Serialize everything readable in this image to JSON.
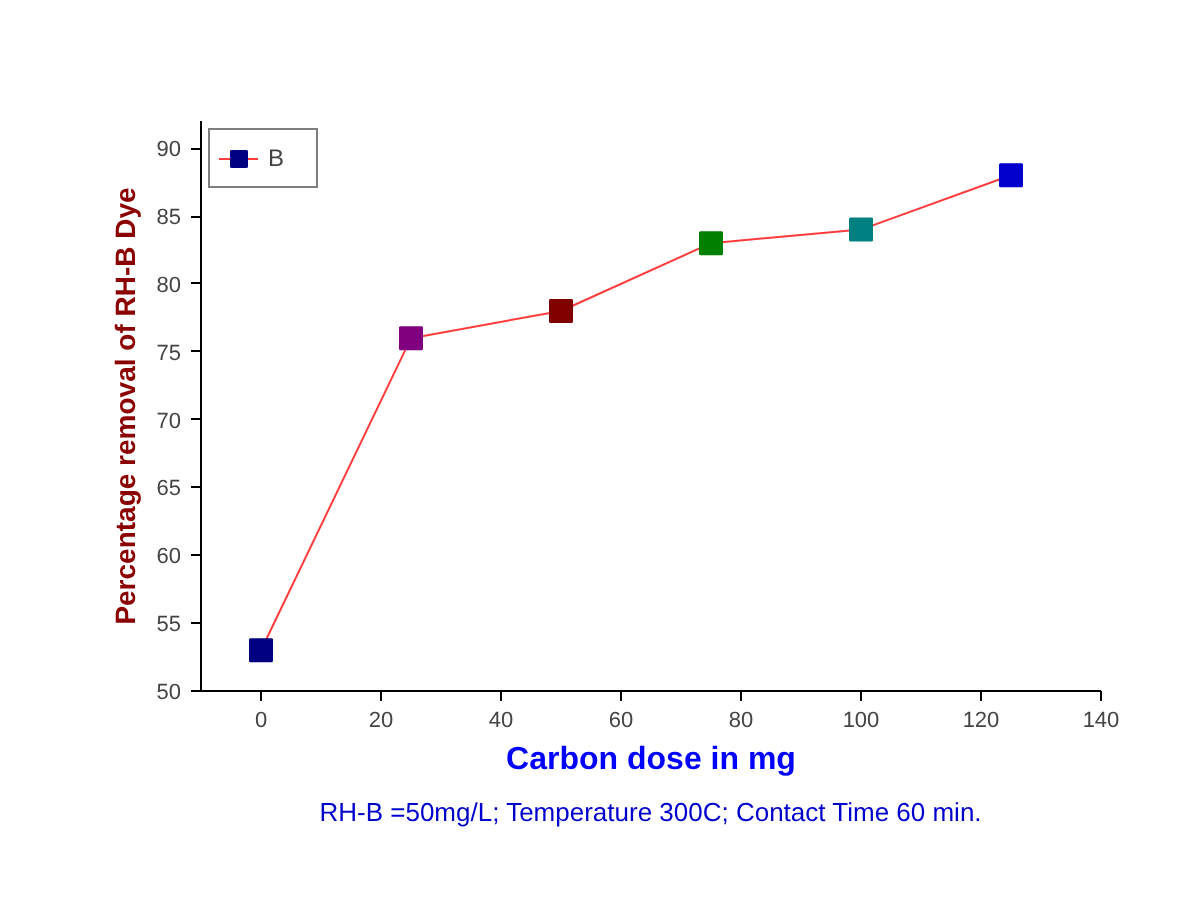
{
  "chart_data": {
    "type": "line",
    "xlabel": "Carbon dose in mg",
    "ylabel": "Percentage removal of RH-B Dye",
    "annotations": [
      "RH-B =50mg/L; Temperature 300C; Contact Time 60 min."
    ],
    "x": [
      0,
      25,
      50,
      75,
      100,
      125
    ],
    "series": [
      {
        "name": "B",
        "color": "#ff3b3b",
        "colors": [
          "#000080",
          "#800080",
          "#800000",
          "#008000",
          "#008080",
          "#0000cc"
        ],
        "values": [
          53,
          76,
          78,
          83,
          84,
          88
        ]
      }
    ],
    "xlim": [
      -10,
      140
    ],
    "xticks": [
      0,
      20,
      40,
      60,
      80,
      100,
      120,
      140
    ],
    "ylim": [
      50,
      92
    ],
    "yticks": [
      50,
      55,
      60,
      65,
      70,
      75,
      80,
      85,
      90
    ],
    "marker": "square",
    "legend": "top left",
    "grid": false
  }
}
